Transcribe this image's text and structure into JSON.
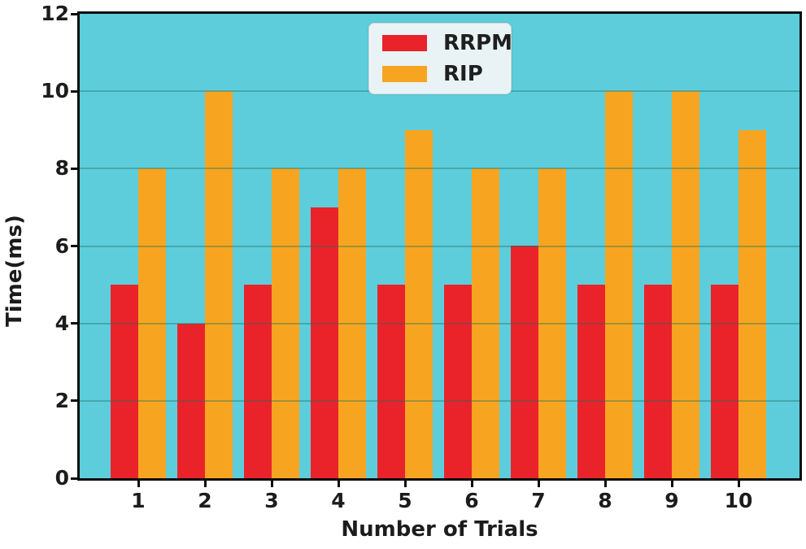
{
  "chart_data": {
    "type": "bar",
    "title": "",
    "xlabel": "Number of Trials",
    "ylabel": "Time(ms)",
    "categories": [
      "1",
      "2",
      "3",
      "4",
      "5",
      "6",
      "7",
      "8",
      "9",
      "10"
    ],
    "series": [
      {
        "name": "RRPM",
        "color": "#ea232b",
        "values": [
          5,
          4,
          5,
          7,
          5,
          5,
          6,
          5,
          5,
          5
        ]
      },
      {
        "name": "RIP",
        "color": "#f7a521",
        "values": [
          8,
          10,
          8,
          8,
          9,
          8,
          8,
          10,
          10,
          9
        ]
      }
    ],
    "ylim": [
      0,
      12
    ],
    "yticks": [
      0,
      2,
      4,
      6,
      8,
      10,
      12
    ],
    "grid": true,
    "legend_position": "upper center",
    "colors": {
      "plot_background": "#5ecddb",
      "grid_line": "rgba(25,110,95,0.38)",
      "spine": "#0d0d0d",
      "legend_background": "#e9f3f5",
      "text": "#1c1c1c"
    }
  }
}
